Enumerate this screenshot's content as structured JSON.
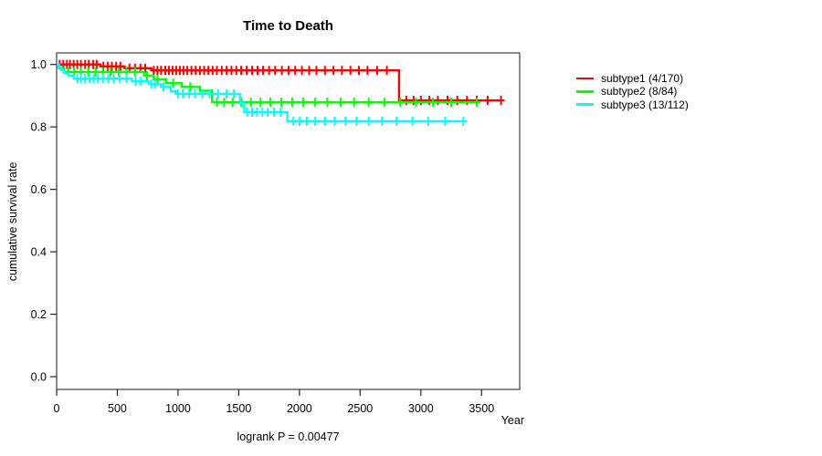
{
  "chart_data": {
    "type": "line",
    "subtype": "kaplan-meier-step",
    "title": "Time to Death",
    "xlabel": "Year",
    "ylabel": "cumulative survival rate",
    "annotation": "logrank P = 0.00477",
    "xlim": [
      0,
      3814
    ],
    "ylim": [
      0,
      1.0
    ],
    "grid": false,
    "legend_position": "right-outside",
    "xticks": [
      0,
      500,
      1000,
      1500,
      2000,
      2500,
      3000,
      3500
    ],
    "yticks": [
      {
        "value": 0.0,
        "label": "0.0"
      },
      {
        "value": 0.2,
        "label": "0.2"
      },
      {
        "value": 0.4,
        "label": "0.4"
      },
      {
        "value": 0.6,
        "label": "0.6"
      },
      {
        "value": 0.8,
        "label": "0.8"
      },
      {
        "value": 1.0,
        "label": "1.0"
      }
    ],
    "series": [
      {
        "id": "subtype1",
        "name": "subtype1 (4/170)",
        "events": 4,
        "n": 170,
        "color": "#ff0000",
        "steps": [
          [
            0,
            1.0
          ],
          [
            360,
            0.994
          ],
          [
            560,
            0.988
          ],
          [
            780,
            0.981
          ],
          [
            2820,
            0.885
          ]
        ],
        "end": 3660,
        "censor_times": [
          25,
          55,
          85,
          110,
          140,
          170,
          200,
          235,
          265,
          300,
          330,
          385,
          420,
          455,
          490,
          525,
          600,
          645,
          690,
          730,
          800,
          830,
          860,
          895,
          925,
          955,
          985,
          1015,
          1045,
          1075,
          1110,
          1145,
          1180,
          1215,
          1250,
          1285,
          1320,
          1360,
          1400,
          1440,
          1480,
          1520,
          1565,
          1610,
          1655,
          1700,
          1750,
          1800,
          1855,
          1910,
          1965,
          2020,
          2080,
          2140,
          2210,
          2280,
          2350,
          2420,
          2490,
          2560,
          2640,
          2720,
          2880,
          2940,
          3000,
          3070,
          3140,
          3220,
          3300,
          3380,
          3460,
          3550,
          3660
        ]
      },
      {
        "id": "subtype2",
        "name": "subtype2 (8/84)",
        "events": 8,
        "n": 84,
        "color": "#00ff00",
        "steps": [
          [
            0,
            1.0
          ],
          [
            20,
            0.988
          ],
          [
            60,
            0.976
          ],
          [
            720,
            0.964
          ],
          [
            800,
            0.952
          ],
          [
            900,
            0.94
          ],
          [
            1030,
            0.928
          ],
          [
            1180,
            0.916
          ],
          [
            1280,
            0.879
          ]
        ],
        "end": 3460,
        "censor_times": [
          95,
          145,
          200,
          260,
          320,
          380,
          445,
          510,
          575,
          645,
          745,
          830,
          960,
          1100,
          1320,
          1380,
          1450,
          1520,
          1600,
          1680,
          1760,
          1850,
          1940,
          2030,
          2130,
          2230,
          2340,
          2450,
          2570,
          2700,
          2830,
          2960,
          3100,
          3250,
          3460
        ]
      },
      {
        "id": "subtype3",
        "name": "subtype3 (13/112)",
        "events": 13,
        "n": 112,
        "color": "#00ffff",
        "steps": [
          [
            0,
            1.0
          ],
          [
            15,
            0.991
          ],
          [
            35,
            0.982
          ],
          [
            60,
            0.973
          ],
          [
            95,
            0.964
          ],
          [
            140,
            0.955
          ],
          [
            620,
            0.946
          ],
          [
            760,
            0.937
          ],
          [
            860,
            0.928
          ],
          [
            940,
            0.915
          ],
          [
            980,
            0.906
          ],
          [
            1510,
            0.876
          ],
          [
            1545,
            0.847
          ],
          [
            1900,
            0.818
          ]
        ],
        "end": 3350,
        "censor_times": [
          170,
          200,
          235,
          270,
          305,
          340,
          380,
          425,
          470,
          520,
          575,
          650,
          690,
          780,
          810,
          880,
          1000,
          1040,
          1090,
          1140,
          1200,
          1260,
          1330,
          1400,
          1460,
          1570,
          1610,
          1650,
          1695,
          1740,
          1790,
          1845,
          1950,
          2000,
          2060,
          2130,
          2210,
          2290,
          2380,
          2470,
          2570,
          2680,
          2800,
          2930,
          3060,
          3200,
          3350
        ]
      }
    ]
  }
}
